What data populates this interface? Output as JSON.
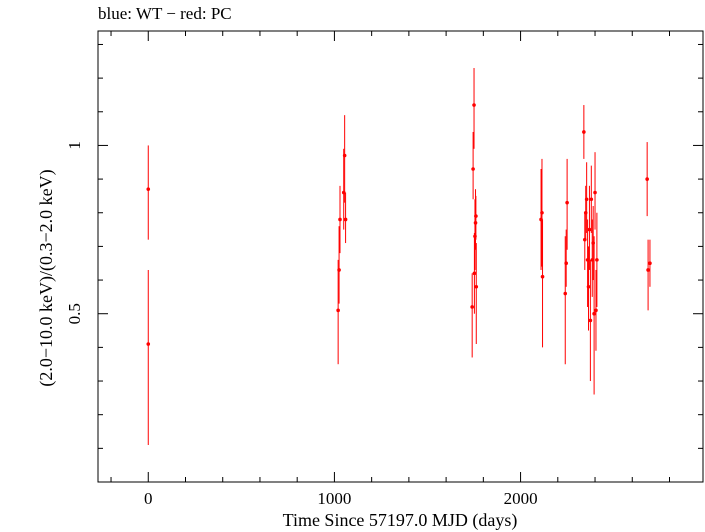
{
  "chart_data": {
    "type": "scatter",
    "title": "blue: WT − red: PC",
    "xlabel": "Time Since 57197.0 MJD (days)",
    "ylabel": "(2.0−10.0 keV)/(0.3−2.0 keV)",
    "xlim": [
      -270,
      2980
    ],
    "ylim": [
      0.0,
      1.34
    ],
    "x_ticks": [
      0,
      1000,
      2000
    ],
    "x_tick_labels": [
      "0",
      "1000",
      "2000"
    ],
    "y_ticks": [
      0.5,
      1.0
    ],
    "y_tick_labels": [
      "0.5",
      "1"
    ],
    "grid": false,
    "colors": {
      "pc": "#ff0000",
      "axes": "#000000"
    },
    "series": [
      {
        "name": "PC",
        "color": "#ff0000",
        "points": [
          {
            "x": 0,
            "y": 0.87,
            "lo": 0.72,
            "hi": 1.0
          },
          {
            "x": 0,
            "y": 0.41,
            "lo": 0.11,
            "hi": 0.63
          },
          {
            "x": 1020,
            "y": 0.51,
            "lo": 0.35,
            "hi": 0.66
          },
          {
            "x": 1025,
            "y": 0.63,
            "lo": 0.53,
            "hi": 0.76
          },
          {
            "x": 1030,
            "y": 0.78,
            "lo": 0.68,
            "hi": 0.88
          },
          {
            "x": 1050,
            "y": 0.86,
            "lo": 0.75,
            "hi": 0.99
          },
          {
            "x": 1055,
            "y": 0.97,
            "lo": 0.83,
            "hi": 1.09
          },
          {
            "x": 1060,
            "y": 0.78,
            "lo": 0.71,
            "hi": 0.86
          },
          {
            "x": 1740,
            "y": 0.52,
            "lo": 0.37,
            "hi": 0.62
          },
          {
            "x": 1745,
            "y": 0.93,
            "lo": 0.84,
            "hi": 1.04
          },
          {
            "x": 1750,
            "y": 1.12,
            "lo": 0.99,
            "hi": 1.23
          },
          {
            "x": 1752,
            "y": 0.62,
            "lo": 0.5,
            "hi": 0.74
          },
          {
            "x": 1755,
            "y": 0.73,
            "lo": 0.63,
            "hi": 0.84
          },
          {
            "x": 1758,
            "y": 0.77,
            "lo": 0.69,
            "hi": 0.87
          },
          {
            "x": 1760,
            "y": 0.79,
            "lo": 0.72,
            "hi": 0.85
          },
          {
            "x": 1762,
            "y": 0.58,
            "lo": 0.41,
            "hi": 0.71
          },
          {
            "x": 2110,
            "y": 0.78,
            "lo": 0.63,
            "hi": 0.93
          },
          {
            "x": 2115,
            "y": 0.8,
            "lo": 0.64,
            "hi": 0.96
          },
          {
            "x": 2118,
            "y": 0.61,
            "lo": 0.4,
            "hi": 0.78
          },
          {
            "x": 2240,
            "y": 0.56,
            "lo": 0.35,
            "hi": 0.73
          },
          {
            "x": 2245,
            "y": 0.65,
            "lo": 0.58,
            "hi": 0.75
          },
          {
            "x": 2250,
            "y": 0.83,
            "lo": 0.69,
            "hi": 0.96
          },
          {
            "x": 2340,
            "y": 1.04,
            "lo": 0.96,
            "hi": 1.12
          },
          {
            "x": 2345,
            "y": 0.72,
            "lo": 0.63,
            "hi": 0.8
          },
          {
            "x": 2350,
            "y": 0.8,
            "lo": 0.72,
            "hi": 0.88
          },
          {
            "x": 2355,
            "y": 0.84,
            "lo": 0.74,
            "hi": 0.95
          },
          {
            "x": 2360,
            "y": 0.66,
            "lo": 0.52,
            "hi": 0.78
          },
          {
            "x": 2365,
            "y": 0.58,
            "lo": 0.45,
            "hi": 0.7
          },
          {
            "x": 2370,
            "y": 0.75,
            "lo": 0.63,
            "hi": 0.88
          },
          {
            "x": 2375,
            "y": 0.48,
            "lo": 0.3,
            "hi": 0.66
          },
          {
            "x": 2380,
            "y": 0.84,
            "lo": 0.74,
            "hi": 0.94
          },
          {
            "x": 2385,
            "y": 0.66,
            "lo": 0.55,
            "hi": 0.78
          },
          {
            "x": 2390,
            "y": 0.71,
            "lo": 0.6,
            "hi": 0.82
          },
          {
            "x": 2395,
            "y": 0.5,
            "lo": 0.26,
            "hi": 0.73
          },
          {
            "x": 2400,
            "y": 0.86,
            "lo": 0.75,
            "hi": 0.98
          },
          {
            "x": 2405,
            "y": 0.51,
            "lo": 0.39,
            "hi": 0.63
          },
          {
            "x": 2410,
            "y": 0.66,
            "lo": 0.52,
            "hi": 0.8
          },
          {
            "x": 2680,
            "y": 0.9,
            "lo": 0.79,
            "hi": 1.01
          },
          {
            "x": 2685,
            "y": 0.63,
            "lo": 0.51,
            "hi": 0.72
          },
          {
            "x": 2695,
            "y": 0.65,
            "lo": 0.58,
            "hi": 0.72
          }
        ]
      }
    ]
  }
}
